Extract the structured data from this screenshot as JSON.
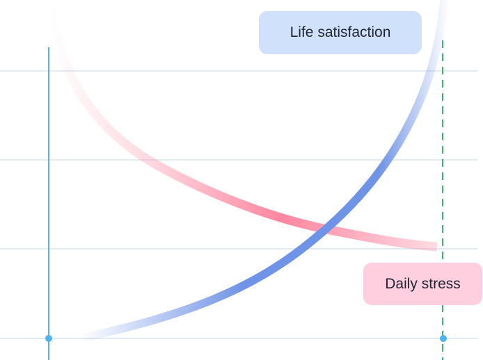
{
  "labels": {
    "life_satisfaction": "Life satisfaction",
    "daily_stress": "Daily stress"
  },
  "colors": {
    "life_satisfaction_curve": "#6f93e6",
    "life_satisfaction_box": "#cfe1fb",
    "daily_stress_curve": "#ff86a0",
    "daily_stress_box": "#ffcfe0",
    "gridline": "#d5e3ef",
    "left_marker": "#4db2ee",
    "right_marker": "#2ebd6b"
  },
  "diagram": {
    "left_marker_style": "solid",
    "right_marker_style": "dashed",
    "life_satisfaction_trend": "rising, accelerating",
    "daily_stress_trend": "falling, flattening"
  }
}
